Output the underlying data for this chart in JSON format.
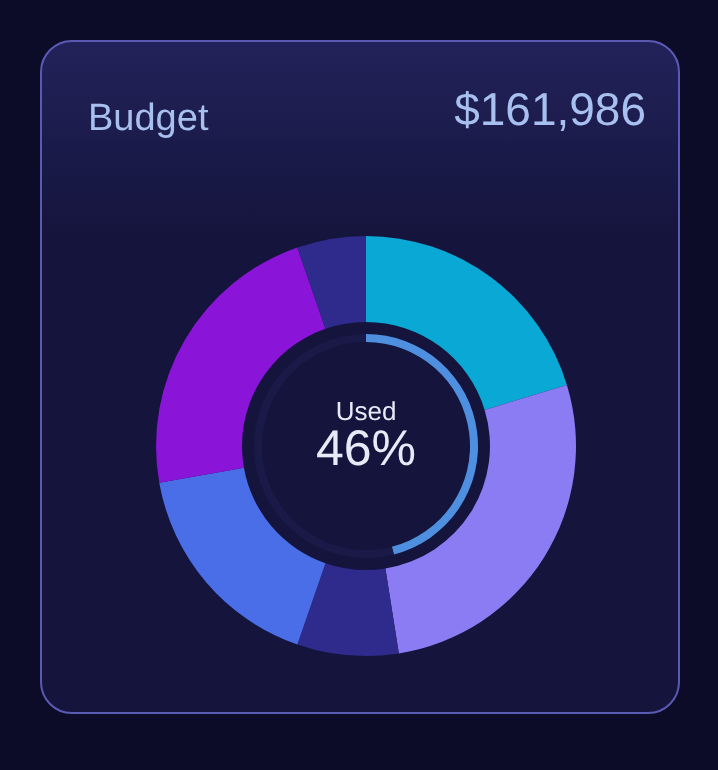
{
  "chart_data": [
    {
      "type": "donut",
      "title": "Budget",
      "annotations": [
        "$161,986"
      ],
      "categories": [
        null,
        null,
        null,
        null,
        null,
        null
      ],
      "values": [
        20.3,
        27.2,
        7.8,
        16.9,
        22.5,
        5.3
      ],
      "colors": [
        "#0aa8d4",
        "#8c7cf4",
        "#2e2b8c",
        "#4a6ee8",
        "#8a14d8",
        "#2e2b8c"
      ]
    },
    {
      "type": "donut",
      "title": "Used",
      "annotations": [
        "46%"
      ],
      "categories": [
        null,
        null
      ],
      "values": [
        46,
        54
      ],
      "colors": [
        "#4f8fe0",
        "#1a1a48"
      ]
    }
  ]
}
